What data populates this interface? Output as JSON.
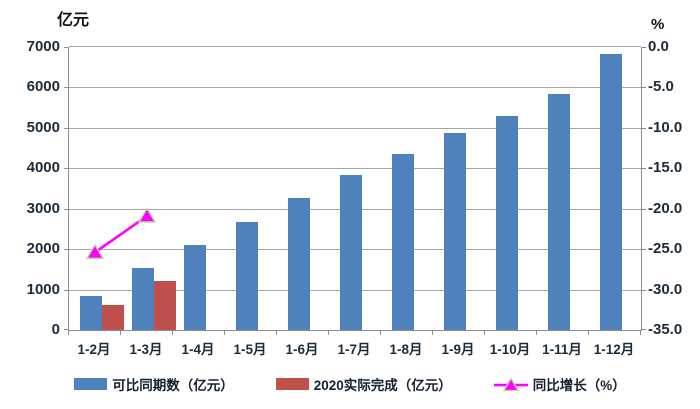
{
  "chart_data": {
    "type": "bar",
    "subtype": "combo-bar-line",
    "title": "",
    "left_axis": {
      "unit": "亿元",
      "min": 0,
      "max": 7000,
      "ticks": [
        "7000",
        "6000",
        "5000",
        "4000",
        "3000",
        "2000",
        "1000",
        "0"
      ]
    },
    "right_axis": {
      "unit": "%",
      "min": -35,
      "max": 0,
      "ticks": [
        "0.0",
        "-5.0",
        "-10.0",
        "-15.0",
        "-20.0",
        "-25.0",
        "-30.0",
        "-35.0"
      ]
    },
    "categories": [
      "1-2月",
      "1-3月",
      "1-4月",
      "1-5月",
      "1-6月",
      "1-7月",
      "1-8月",
      "1-9月",
      "1-10月",
      "1-11月",
      "1-12月"
    ],
    "series": [
      {
        "name": "可比同期数（亿元）",
        "type": "bar",
        "axis": "left",
        "color": "#4F81BD",
        "values": [
          840,
          1530,
          2100,
          2680,
          3270,
          3840,
          4360,
          4870,
          5290,
          5840,
          6820
        ]
      },
      {
        "name": "2020实际完成（亿元）",
        "type": "bar",
        "axis": "left",
        "color": "#C0504D",
        "values": [
          630,
          1210,
          null,
          null,
          null,
          null,
          null,
          null,
          null,
          null,
          null
        ]
      },
      {
        "name": "同比增长（%）",
        "type": "line",
        "axis": "right",
        "color": "#FF00FF",
        "marker": "triangle",
        "marker_border": "#C3D69B",
        "values": [
          -25.4,
          -20.9,
          null,
          null,
          null,
          null,
          null,
          null,
          null,
          null,
          null
        ]
      }
    ],
    "grid": true,
    "gridline_color": "#A6A6A6",
    "legend_position": "bottom"
  }
}
